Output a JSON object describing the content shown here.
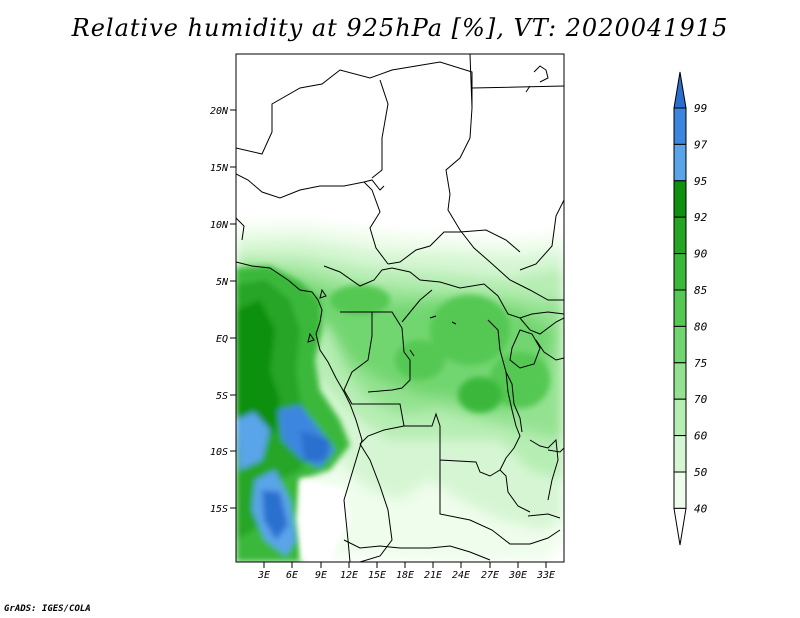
{
  "title": "Relative humidity at 925hPa [%], VT: 2020041915",
  "credit": "GrADS: IGES/COLA",
  "map": {
    "lat_labels": [
      "20N",
      "15N",
      "10N",
      "5N",
      "EQ",
      "5S",
      "10S",
      "15S"
    ],
    "lon_labels": [
      "3E",
      "6E",
      "9E",
      "12E",
      "15E",
      "18E",
      "21E",
      "24E",
      "27E",
      "30E",
      "33E"
    ]
  },
  "colorbar": {
    "labels": [
      "99",
      "97",
      "95",
      "92",
      "90",
      "85",
      "80",
      "75",
      "70",
      "60",
      "50",
      "40"
    ],
    "colors": [
      "#2a6fcf",
      "#3d86e0",
      "#5aa4ea",
      "#10900e",
      "#26a525",
      "#3bb83a",
      "#54c853",
      "#72d670",
      "#94e291",
      "#b6edb3",
      "#d6f6d3",
      "#effdec",
      "#ffffff"
    ]
  }
}
